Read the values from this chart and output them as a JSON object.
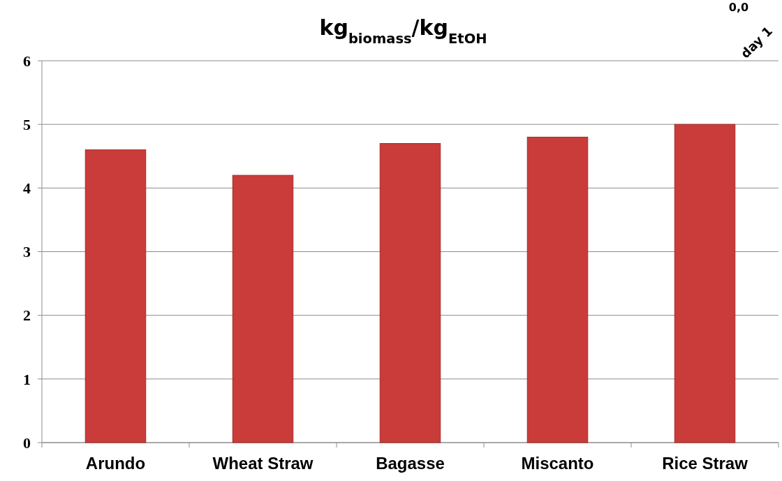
{
  "chart_data": {
    "type": "bar",
    "title": "kg$_{biomass}$/kg$_{EtOH}$",
    "categories": [
      "Arundo",
      "Wheat Straw",
      "Bagasse",
      "Miscanto",
      "Rice Straw"
    ],
    "values": [
      4.6,
      4.2,
      4.7,
      4.8,
      5.0
    ],
    "color": "#c93c3a",
    "ylim": [
      0,
      6
    ],
    "yticks": [
      0,
      1,
      2,
      3,
      4,
      5,
      6
    ],
    "grid": "y",
    "annotations": [
      "0,0",
      "day 1"
    ]
  }
}
